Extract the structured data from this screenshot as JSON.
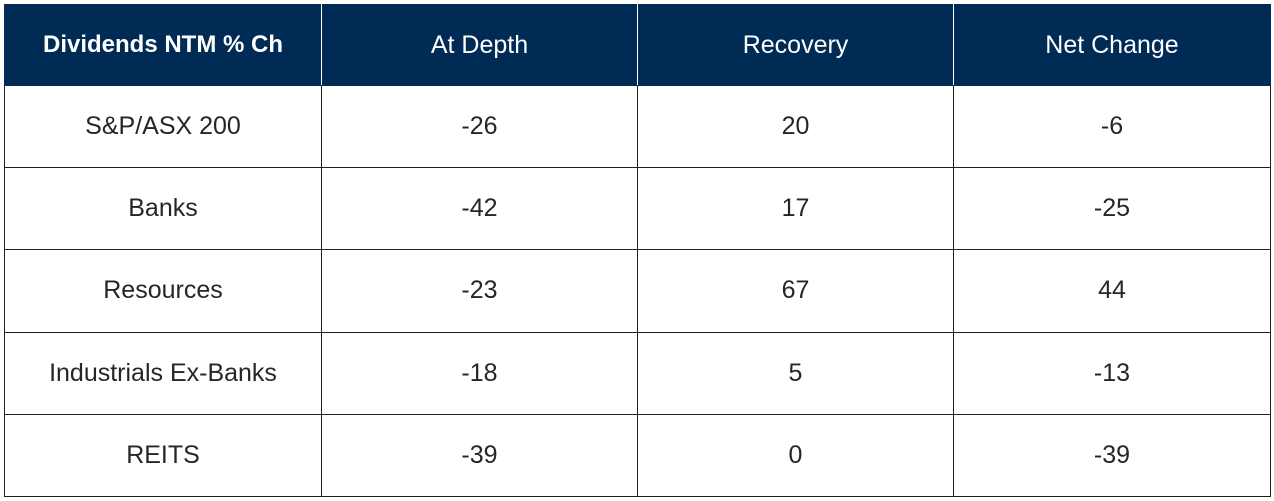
{
  "chart_data": {
    "type": "table",
    "columns": [
      "Dividends NTM % Ch",
      "At Depth",
      "Recovery",
      "Net Change"
    ],
    "rows": [
      {
        "label": "S&P/ASX 200",
        "values": [
          "-26",
          "20",
          "-6"
        ]
      },
      {
        "label": "Banks",
        "values": [
          "-42",
          "17",
          "-25"
        ]
      },
      {
        "label": "Resources",
        "values": [
          "-23",
          "67",
          "44"
        ]
      },
      {
        "label": "Industrials Ex-Banks",
        "values": [
          "-18",
          "5",
          "-13"
        ]
      },
      {
        "label": "REITS",
        "values": [
          "-39",
          "0",
          "-39"
        ]
      }
    ]
  },
  "colors": {
    "header_bg": "#002b55",
    "header_text": "#ffffff",
    "cell_text": "#262626",
    "grid": "#1f1f1f"
  }
}
